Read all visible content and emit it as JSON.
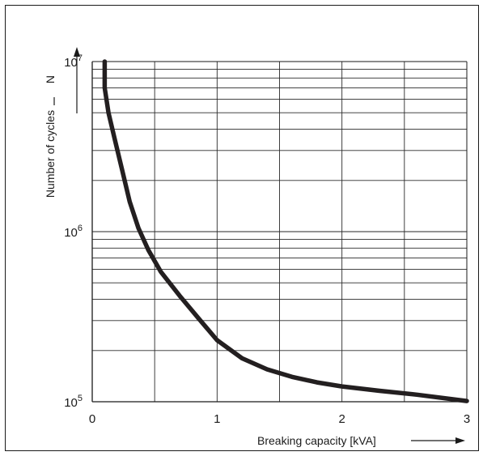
{
  "chart_data": {
    "type": "line",
    "title": "",
    "xlabel": "Breaking capacity [kVA]",
    "ylabel": "Number of cycles",
    "ysymbol": "N",
    "yscale": "log",
    "xlim": [
      0,
      3
    ],
    "ylim": [
      100000,
      10000000
    ],
    "grid": true,
    "x_ticks": [
      {
        "value": 0,
        "label": "0"
      },
      {
        "value": 1,
        "label": "1"
      },
      {
        "value": 2,
        "label": "2"
      },
      {
        "value": 3,
        "label": "3"
      }
    ],
    "x_gridlines": [
      0.5,
      1,
      1.5,
      2,
      2.5
    ],
    "y_ticks": [
      {
        "value": 100000,
        "base": "10",
        "exp": "5"
      },
      {
        "value": 1000000,
        "base": "10",
        "exp": "6"
      },
      {
        "value": 10000000,
        "base": "10",
        "exp": "7"
      }
    ],
    "series": [
      {
        "color": "#231f20",
        "points": [
          {
            "x": 0.1,
            "y": 10000000
          },
          {
            "x": 0.1,
            "y": 7000000
          },
          {
            "x": 0.13,
            "y": 5000000
          },
          {
            "x": 0.18,
            "y": 3500000
          },
          {
            "x": 0.24,
            "y": 2300000
          },
          {
            "x": 0.3,
            "y": 1500000
          },
          {
            "x": 0.37,
            "y": 1050000
          },
          {
            "x": 0.45,
            "y": 780000
          },
          {
            "x": 0.55,
            "y": 580000
          },
          {
            "x": 0.7,
            "y": 420000
          },
          {
            "x": 0.85,
            "y": 310000
          },
          {
            "x": 1.0,
            "y": 230000
          },
          {
            "x": 1.2,
            "y": 180000
          },
          {
            "x": 1.4,
            "y": 155000
          },
          {
            "x": 1.6,
            "y": 140000
          },
          {
            "x": 1.8,
            "y": 130000
          },
          {
            "x": 2.0,
            "y": 123000
          },
          {
            "x": 2.3,
            "y": 116000
          },
          {
            "x": 2.6,
            "y": 110000
          },
          {
            "x": 3.0,
            "y": 101000
          }
        ]
      }
    ]
  }
}
